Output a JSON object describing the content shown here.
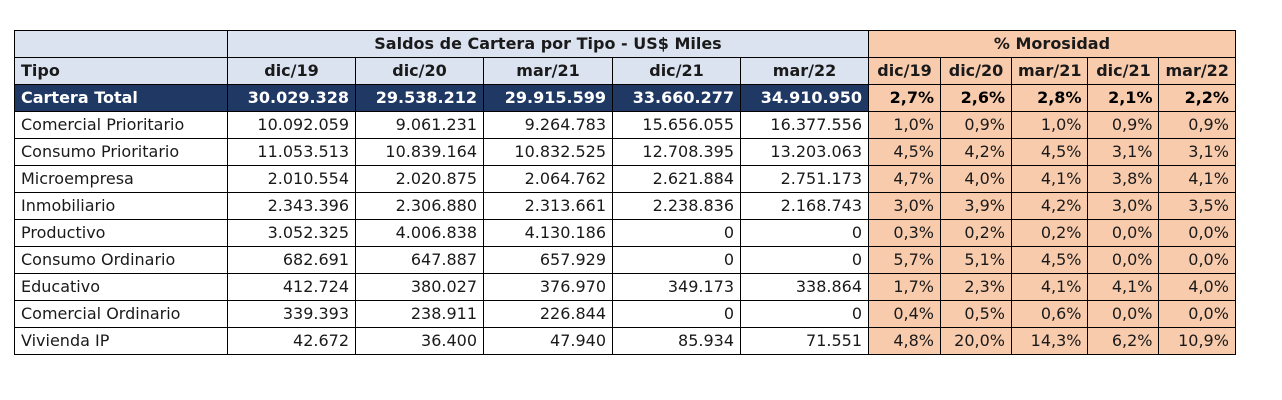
{
  "header": {
    "group_saldos": "Saldos de Cartera por Tipo - US$ Miles",
    "group_morosidad": "% Morosidad",
    "tipo_label": "Tipo",
    "saldo_periods": [
      "dic/19",
      "dic/20",
      "mar/21",
      "dic/21",
      "mar/22"
    ],
    "moro_periods": [
      "dic/19",
      "dic/20",
      "mar/21",
      "dic/21",
      "mar/22"
    ]
  },
  "total": {
    "label": "Cartera Total",
    "saldos": [
      "30.029.328",
      "29.538.212",
      "29.915.599",
      "33.660.277",
      "34.910.950"
    ],
    "moro": [
      "2,7%",
      "2,6%",
      "2,8%",
      "2,1%",
      "2,2%"
    ]
  },
  "rows": [
    {
      "label": "Comercial Prioritario",
      "saldos": [
        "10.092.059",
        "9.061.231",
        "9.264.783",
        "15.656.055",
        "16.377.556"
      ],
      "moro": [
        "1,0%",
        "0,9%",
        "1,0%",
        "0,9%",
        "0,9%"
      ]
    },
    {
      "label": "Consumo Prioritario",
      "saldos": [
        "11.053.513",
        "10.839.164",
        "10.832.525",
        "12.708.395",
        "13.203.063"
      ],
      "moro": [
        "4,5%",
        "4,2%",
        "4,5%",
        "3,1%",
        "3,1%"
      ]
    },
    {
      "label": "Microempresa",
      "saldos": [
        "2.010.554",
        "2.020.875",
        "2.064.762",
        "2.621.884",
        "2.751.173"
      ],
      "moro": [
        "4,7%",
        "4,0%",
        "4,1%",
        "3,8%",
        "4,1%"
      ]
    },
    {
      "label": "Inmobiliario",
      "saldos": [
        "2.343.396",
        "2.306.880",
        "2.313.661",
        "2.238.836",
        "2.168.743"
      ],
      "moro": [
        "3,0%",
        "3,9%",
        "4,2%",
        "3,0%",
        "3,5%"
      ]
    },
    {
      "label": "Productivo",
      "saldos": [
        "3.052.325",
        "4.006.838",
        "4.130.186",
        "0",
        "0"
      ],
      "moro": [
        "0,3%",
        "0,2%",
        "0,2%",
        "0,0%",
        "0,0%"
      ]
    },
    {
      "label": "Consumo Ordinario",
      "saldos": [
        "682.691",
        "647.887",
        "657.929",
        "0",
        "0"
      ],
      "moro": [
        "5,7%",
        "5,1%",
        "4,5%",
        "0,0%",
        "0,0%"
      ]
    },
    {
      "label": "Educativo",
      "saldos": [
        "412.724",
        "380.027",
        "376.970",
        "349.173",
        "338.864"
      ],
      "moro": [
        "1,7%",
        "2,3%",
        "4,1%",
        "4,1%",
        "4,0%"
      ]
    },
    {
      "label": "Comercial Ordinario",
      "saldos": [
        "339.393",
        "238.911",
        "226.844",
        "0",
        "0"
      ],
      "moro": [
        "0,4%",
        "0,5%",
        "0,6%",
        "0,0%",
        "0,0%"
      ]
    },
    {
      "label": "Vivienda IP",
      "saldos": [
        "42.672",
        "36.400",
        "47.940",
        "85.934",
        "71.551"
      ],
      "moro": [
        "4,8%",
        "20,0%",
        "14,3%",
        "6,2%",
        "10,9%"
      ]
    }
  ],
  "colors": {
    "total_row_bg": "#1f3864",
    "morosidad_bg": "#f8cbad",
    "header_bg": "#dbe3f1"
  }
}
